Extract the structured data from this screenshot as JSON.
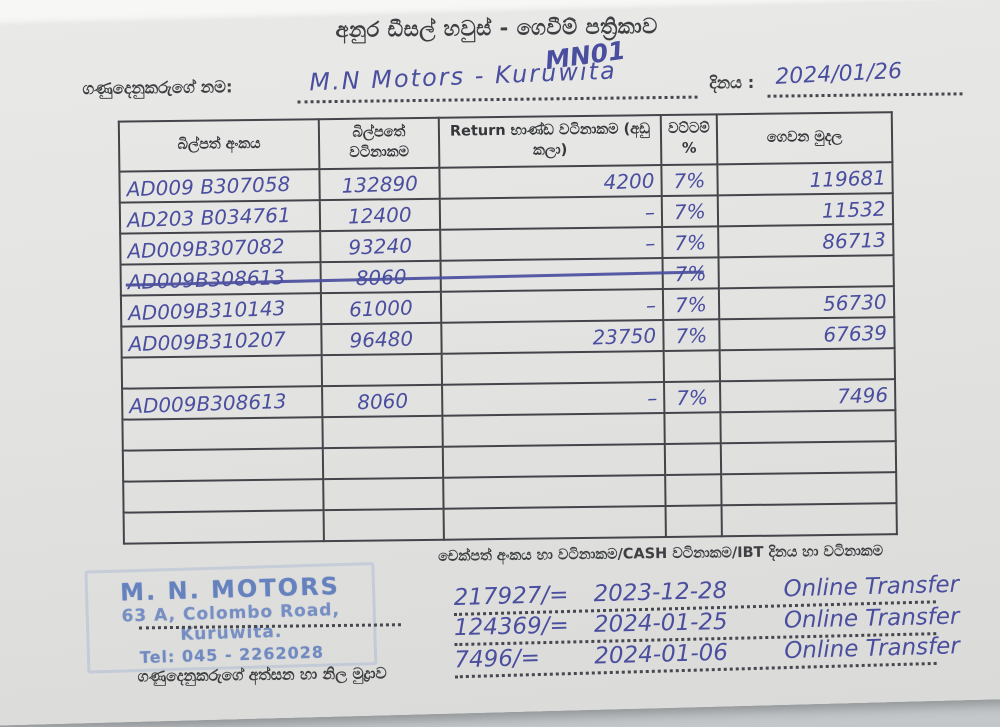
{
  "page": {
    "title": "අනුර ඩීසල් හවුස් - ගෙවීම් පත්‍රිකාව",
    "handwritten_annotation": "MN01"
  },
  "customer": {
    "name_label": "ගණුදෙනුකරුගේ නම:",
    "name_value": "M.N  Motors - Kuruwita",
    "date_label": "දිනය :",
    "date_value": "2024/01/26"
  },
  "table": {
    "headers": [
      "බිල්පත් අංකය",
      "බිල්පතේ වටිනාකම",
      "Return භාණ්ඩ වටිනාකම (අඩු කලා)",
      "වට්ටම් %",
      "ගෙවන මුදල"
    ],
    "rows": [
      {
        "bill_no": "AD009 B307058",
        "bill_value": "132890",
        "return_value": "4200",
        "discount": "7%",
        "amount": "119681",
        "struck": false
      },
      {
        "bill_no": "AD203 B034761",
        "bill_value": "12400",
        "return_value": "–",
        "discount": "7%",
        "amount": "11532",
        "struck": false
      },
      {
        "bill_no": "AD009B307082",
        "bill_value": "93240",
        "return_value": "–",
        "discount": "7%",
        "amount": "86713",
        "struck": false
      },
      {
        "bill_no": "AD009B308613",
        "bill_value": "8060",
        "return_value": "",
        "discount": "7%",
        "amount": "",
        "struck": true
      },
      {
        "bill_no": "AD009B310143",
        "bill_value": "61000",
        "return_value": "–",
        "discount": "7%",
        "amount": "56730",
        "struck": false
      },
      {
        "bill_no": "AD009B310207",
        "bill_value": "96480",
        "return_value": "23750",
        "discount": "7%",
        "amount": "67639",
        "struck": false
      },
      {
        "bill_no": "",
        "bill_value": "",
        "return_value": "",
        "discount": "",
        "amount": "",
        "struck": false
      },
      {
        "bill_no": "AD009B308613",
        "bill_value": "8060",
        "return_value": "–",
        "discount": "7%",
        "amount": "7496",
        "struck": false
      },
      {
        "bill_no": "",
        "bill_value": "",
        "return_value": "",
        "discount": "",
        "amount": "",
        "struck": false
      },
      {
        "bill_no": "",
        "bill_value": "",
        "return_value": "",
        "discount": "",
        "amount": "",
        "struck": false
      },
      {
        "bill_no": "",
        "bill_value": "",
        "return_value": "",
        "discount": "",
        "amount": "",
        "struck": false
      },
      {
        "bill_no": "",
        "bill_value": "",
        "return_value": "",
        "discount": "",
        "amount": "",
        "struck": false
      }
    ]
  },
  "footer": {
    "note": "චෙක්පත් අංකය හා වටිනාකම/CASH වටිනාකම/IBT දිනය හා වටිනාකම",
    "stamp": {
      "name": "M. N. MOTORS",
      "address_line1": "63 A, Colombo Road,",
      "address_line2": "Kuruwita.",
      "phone": "Tel: 045 - 2262028"
    },
    "signature_caption": "ගණුදෙනුකරුගේ අත්සන හා නිල මුද්‍රාව",
    "payments": [
      {
        "amount": "217927/=",
        "date": "2023-12-28",
        "method": "Online Transfer"
      },
      {
        "amount": "124369/=",
        "date": "2024-01-25",
        "method": "Online Transfer"
      },
      {
        "amount": "7496/=",
        "date": "2024-01-06",
        "method": "Online Transfer"
      }
    ]
  },
  "colors": {
    "ink": "#4a4e9e",
    "printed_text": "#3d3f42",
    "stamp_blue": "#6b85c2",
    "paper": "#e3e3e1"
  }
}
